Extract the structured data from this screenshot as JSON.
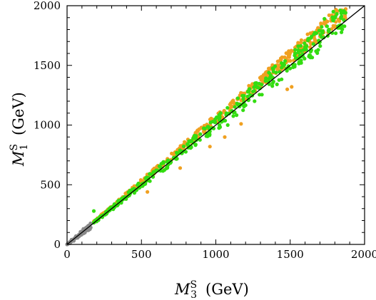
{
  "chart_data": {
    "type": "scatter",
    "xlim": [
      0,
      2000
    ],
    "ylim": [
      0,
      2000
    ],
    "x_ticks": [
      0,
      500,
      1000,
      1500,
      2000
    ],
    "y_ticks": [
      0,
      500,
      1000,
      1500,
      2000
    ],
    "x_tick_labels": [
      "0",
      "500",
      "1000",
      "1500",
      "2000"
    ],
    "y_tick_labels": [
      "0",
      "500",
      "1000",
      "1500",
      "2000"
    ],
    "xlabel": {
      "symbol": "M",
      "sub": "3",
      "sup": "S",
      "unit": "(GeV)"
    },
    "ylabel": {
      "symbol": "M",
      "sub": "1",
      "sup": "S",
      "unit": "(GeV)"
    },
    "grid": false,
    "legend": "none",
    "reference_line": {
      "from": [
        0,
        0
      ],
      "to": [
        2000,
        2000
      ],
      "color": "#000000",
      "label": "y = x"
    },
    "series": [
      {
        "color": "#888888",
        "band": {
          "x_range": [
            0,
            160
          ],
          "ratio_min": 0.82,
          "ratio_max": 1.12,
          "count": 110
        },
        "points": [
          [
            20,
            10
          ],
          [
            45,
            30
          ],
          [
            70,
            55
          ],
          [
            95,
            80
          ],
          [
            120,
            100
          ],
          [
            145,
            125
          ],
          [
            30,
            40
          ],
          [
            60,
            70
          ],
          [
            90,
            105
          ],
          [
            110,
            130
          ]
        ]
      },
      {
        "color": "#f0a020",
        "band": {
          "x_range": [
            180,
            1880
          ],
          "ratio_min": 1.01,
          "ratio_max": 1.09,
          "count": 430
        },
        "points": [
          [
            540,
            440
          ],
          [
            760,
            640
          ],
          [
            960,
            820
          ],
          [
            1060,
            900
          ],
          [
            1170,
            1010
          ],
          [
            1480,
            1300
          ],
          [
            1510,
            1320
          ]
        ]
      },
      {
        "color": "#33dd11",
        "band": {
          "x_range": [
            180,
            1880
          ],
          "ratio_min": 0.95,
          "ratio_max": 1.07,
          "count": 360
        },
        "points": [
          [
            180,
            280
          ],
          [
            1080,
            1000
          ],
          [
            1640,
            1730
          ],
          [
            1790,
            1950
          ],
          [
            1620,
            1710
          ],
          [
            1860,
            1880
          ],
          [
            1730,
            1890
          ],
          [
            1760,
            1800
          ]
        ]
      }
    ]
  }
}
